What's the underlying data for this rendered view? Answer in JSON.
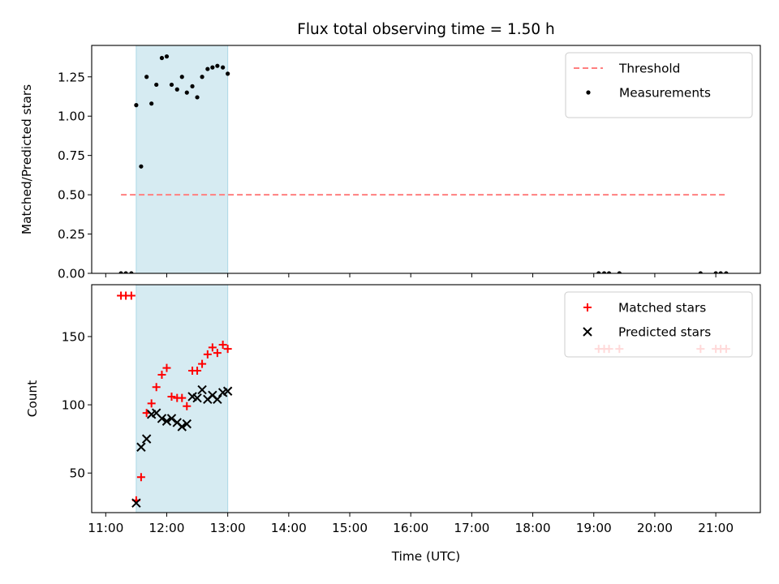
{
  "chart_data": {
    "title": "Flux total observing time = 1.50 h",
    "xlabel": "Time (UTC)",
    "x_unit": "hour of day (UTC)",
    "xlim": [
      10.77,
      21.73
    ],
    "xticks": [
      {
        "value": 11,
        "label": "11:00"
      },
      {
        "value": 12,
        "label": "12:00"
      },
      {
        "value": 13,
        "label": "13:00"
      },
      {
        "value": 14,
        "label": "14:00"
      },
      {
        "value": 15,
        "label": "15:00"
      },
      {
        "value": 16,
        "label": "16:00"
      },
      {
        "value": 17,
        "label": "17:00"
      },
      {
        "value": 18,
        "label": "18:00"
      },
      {
        "value": 19,
        "label": "19:00"
      },
      {
        "value": 20,
        "label": "20:00"
      },
      {
        "value": 21,
        "label": "21:00"
      }
    ],
    "shaded_interval": {
      "x": [
        11.5,
        13.0
      ],
      "color": "#add8e6"
    },
    "panels": [
      {
        "id": "ratio",
        "ylabel": "Matched/Predicted stars",
        "ylim": [
          0,
          1.45
        ],
        "yticks": [
          {
            "value": 0.0,
            "label": "0.00"
          },
          {
            "value": 0.25,
            "label": "0.25"
          },
          {
            "value": 0.5,
            "label": "0.50"
          },
          {
            "value": 0.75,
            "label": "0.75"
          },
          {
            "value": 1.0,
            "label": "1.00"
          },
          {
            "value": 1.25,
            "label": "1.25"
          }
        ],
        "threshold": {
          "name": "Threshold",
          "value": 0.5,
          "x_range": [
            11.25,
            21.17
          ],
          "color": "#ff7f7f"
        },
        "legend_position": "top-right",
        "series": [
          {
            "name": "Measurements",
            "type": "scatter",
            "marker": "dot",
            "color": "#000000",
            "points": [
              [
                11.25,
                0
              ],
              [
                11.33,
                0
              ],
              [
                11.42,
                0
              ],
              [
                11.5,
                1.07
              ],
              [
                11.58,
                0.68
              ],
              [
                11.67,
                1.25
              ],
              [
                11.75,
                1.08
              ],
              [
                11.83,
                1.2
              ],
              [
                11.92,
                1.37
              ],
              [
                12.0,
                1.38
              ],
              [
                12.08,
                1.2
              ],
              [
                12.17,
                1.17
              ],
              [
                12.25,
                1.25
              ],
              [
                12.33,
                1.15
              ],
              [
                12.42,
                1.19
              ],
              [
                12.5,
                1.12
              ],
              [
                12.58,
                1.25
              ],
              [
                12.67,
                1.3
              ],
              [
                12.75,
                1.31
              ],
              [
                12.83,
                1.32
              ],
              [
                12.92,
                1.31
              ],
              [
                13.0,
                1.27
              ],
              [
                19.08,
                0
              ],
              [
                19.17,
                0
              ],
              [
                19.25,
                0
              ],
              [
                19.42,
                0
              ],
              [
                20.75,
                0
              ],
              [
                21.0,
                0
              ],
              [
                21.08,
                0
              ],
              [
                21.17,
                0
              ]
            ]
          }
        ]
      },
      {
        "id": "counts",
        "ylabel": "Count",
        "ylim": [
          21,
          188
        ],
        "yticks": [
          {
            "value": 50,
            "label": "50"
          },
          {
            "value": 100,
            "label": "100"
          },
          {
            "value": 150,
            "label": "150"
          }
        ],
        "legend_position": "top-right",
        "series": [
          {
            "name": "Matched stars",
            "type": "scatter",
            "marker": "plus",
            "color": "#ff0000",
            "points": [
              [
                11.25,
                180
              ],
              [
                11.33,
                180
              ],
              [
                11.42,
                180
              ],
              [
                11.5,
                30
              ],
              [
                11.58,
                47
              ],
              [
                11.67,
                94
              ],
              [
                11.75,
                101
              ],
              [
                11.83,
                113
              ],
              [
                11.92,
                122
              ],
              [
                12.0,
                127
              ],
              [
                12.08,
                106
              ],
              [
                12.17,
                105
              ],
              [
                12.25,
                105
              ],
              [
                12.33,
                99
              ],
              [
                12.42,
                125
              ],
              [
                12.5,
                125
              ],
              [
                12.58,
                130
              ],
              [
                12.67,
                137
              ],
              [
                12.75,
                142
              ],
              [
                12.83,
                138
              ],
              [
                12.92,
                144
              ],
              [
                13.0,
                141
              ],
              [
                19.08,
                141
              ],
              [
                19.17,
                141
              ],
              [
                19.25,
                141
              ],
              [
                19.42,
                141
              ],
              [
                20.75,
                141
              ],
              [
                21.0,
                141
              ],
              [
                21.08,
                141
              ],
              [
                21.17,
                141
              ]
            ]
          },
          {
            "name": "Predicted stars",
            "type": "scatter",
            "marker": "x",
            "color": "#000000",
            "points": [
              [
                11.5,
                28
              ],
              [
                11.58,
                69
              ],
              [
                11.67,
                75
              ],
              [
                11.75,
                93
              ],
              [
                11.83,
                94
              ],
              [
                11.92,
                90
              ],
              [
                12.0,
                88
              ],
              [
                12.08,
                90
              ],
              [
                12.17,
                87
              ],
              [
                12.25,
                84
              ],
              [
                12.33,
                86
              ],
              [
                12.42,
                106
              ],
              [
                12.5,
                105
              ],
              [
                12.58,
                111
              ],
              [
                12.67,
                104
              ],
              [
                12.75,
                107
              ],
              [
                12.83,
                104
              ],
              [
                12.92,
                109
              ],
              [
                13.0,
                110
              ]
            ]
          }
        ]
      }
    ]
  }
}
